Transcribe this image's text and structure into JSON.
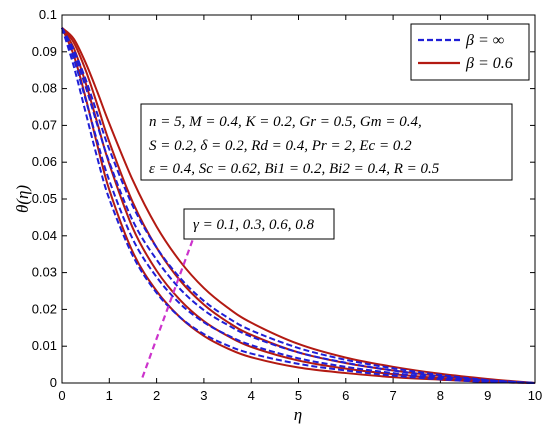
{
  "chart_data": {
    "type": "line",
    "xlabel": "η",
    "ylabel": "θ(η)",
    "xlim": [
      0,
      10
    ],
    "ylim": [
      0,
      0.1
    ],
    "xticks": [
      0,
      1,
      2,
      3,
      4,
      5,
      6,
      7,
      8,
      9,
      10
    ],
    "yticks": [
      0,
      0.01,
      0.02,
      0.03,
      0.04,
      0.05,
      0.06,
      0.07,
      0.08,
      0.09,
      0.1
    ],
    "xtick_labels": [
      "0",
      "1",
      "2",
      "3",
      "4",
      "5",
      "6",
      "7",
      "8",
      "9",
      "10"
    ],
    "ytick_labels": [
      "0",
      "0.01",
      "0.02",
      "0.03",
      "0.04",
      "0.05",
      "0.06",
      "0.07",
      "0.08",
      "0.09",
      "0.1"
    ],
    "legend": {
      "placement": "top-right",
      "entries": [
        {
          "label": "β = ∞",
          "color": "#1f1fd6",
          "style": "dashed"
        },
        {
          "label": "β = 0.6",
          "color": "#b31a12",
          "style": "solid"
        }
      ]
    },
    "parameter_box": {
      "lines": [
        "n = 5, M = 0.4, K = 0.2, Gr = 0.5, Gm = 0.4,",
        "S = 0.2, δ = 0.2, Rd = 0.4, Pr = 2, Ec = 0.2",
        "ε = 0.4, Sc = 0.62, Bi1 = 0.2, Bi2 = 0.4, R = 0.5"
      ]
    },
    "annotation": {
      "text": "γ = 0.1, 0.3, 0.6, 0.8",
      "arrow_color": "#cc33cc",
      "arrow_from": [
        1.7,
        0.0015
      ],
      "arrow_to": [
        2.95,
        0.0455
      ]
    },
    "x": [
      0,
      0.25,
      0.5,
      0.75,
      1,
      1.5,
      2,
      2.5,
      3,
      3.5,
      4,
      5,
      6,
      7,
      8,
      9,
      10
    ],
    "series": [
      {
        "name": "β = ∞",
        "gamma": 0.1,
        "color": "#1f1fd6",
        "style": "dashed",
        "values": [
          0.0965,
          0.086,
          0.0735,
          0.061,
          0.05,
          0.0345,
          0.0245,
          0.0178,
          0.0133,
          0.0102,
          0.008,
          0.0052,
          0.0034,
          0.002,
          0.001,
          0.0003,
          0
        ]
      },
      {
        "name": "β = ∞",
        "gamma": 0.3,
        "color": "#1f1fd6",
        "style": "dashed",
        "values": [
          0.0965,
          0.088,
          0.077,
          0.0655,
          0.055,
          0.039,
          0.0288,
          0.0215,
          0.0165,
          0.013,
          0.0103,
          0.0067,
          0.0044,
          0.0027,
          0.0014,
          0.0005,
          0
        ]
      },
      {
        "name": "β = ∞",
        "gamma": 0.6,
        "color": "#1f1fd6",
        "style": "dashed",
        "values": [
          0.0965,
          0.0895,
          0.0805,
          0.07,
          0.06,
          0.044,
          0.0335,
          0.0255,
          0.0198,
          0.0158,
          0.0126,
          0.0083,
          0.0055,
          0.0034,
          0.0018,
          0.0007,
          0
        ]
      },
      {
        "name": "β = ∞",
        "gamma": 0.8,
        "color": "#1f1fd6",
        "style": "dashed",
        "values": [
          0.0965,
          0.0905,
          0.0825,
          0.073,
          0.0635,
          0.048,
          0.0368,
          0.0285,
          0.0223,
          0.0178,
          0.0143,
          0.0095,
          0.0063,
          0.004,
          0.0022,
          0.0008,
          0
        ]
      },
      {
        "name": "β = 0.6",
        "gamma": 0.1,
        "color": "#b31a12",
        "style": "solid",
        "values": [
          0.0965,
          0.089,
          0.0775,
          0.0645,
          0.0525,
          0.0355,
          0.025,
          0.0178,
          0.0128,
          0.0094,
          0.007,
          0.0042,
          0.0027,
          0.0016,
          0.0009,
          0.0003,
          0
        ]
      },
      {
        "name": "β = 0.6",
        "gamma": 0.3,
        "color": "#b31a12",
        "style": "solid",
        "values": [
          0.0965,
          0.091,
          0.0815,
          0.0705,
          0.0595,
          0.042,
          0.0305,
          0.0225,
          0.0168,
          0.0128,
          0.0098,
          0.0061,
          0.0039,
          0.0024,
          0.0013,
          0.0005,
          0
        ]
      },
      {
        "name": "β = 0.6",
        "gamma": 0.6,
        "color": "#b31a12",
        "style": "solid",
        "values": [
          0.0965,
          0.0925,
          0.085,
          0.0755,
          0.0655,
          0.049,
          0.0368,
          0.0278,
          0.0213,
          0.0166,
          0.0131,
          0.0083,
          0.0054,
          0.0034,
          0.0019,
          0.0008,
          0
        ]
      },
      {
        "name": "β = 0.6",
        "gamma": 0.8,
        "color": "#b31a12",
        "style": "solid",
        "values": [
          0.0965,
          0.0935,
          0.087,
          0.079,
          0.0705,
          0.055,
          0.0425,
          0.033,
          0.0258,
          0.0205,
          0.0164,
          0.0106,
          0.0069,
          0.0044,
          0.0025,
          0.0011,
          0
        ]
      }
    ]
  }
}
